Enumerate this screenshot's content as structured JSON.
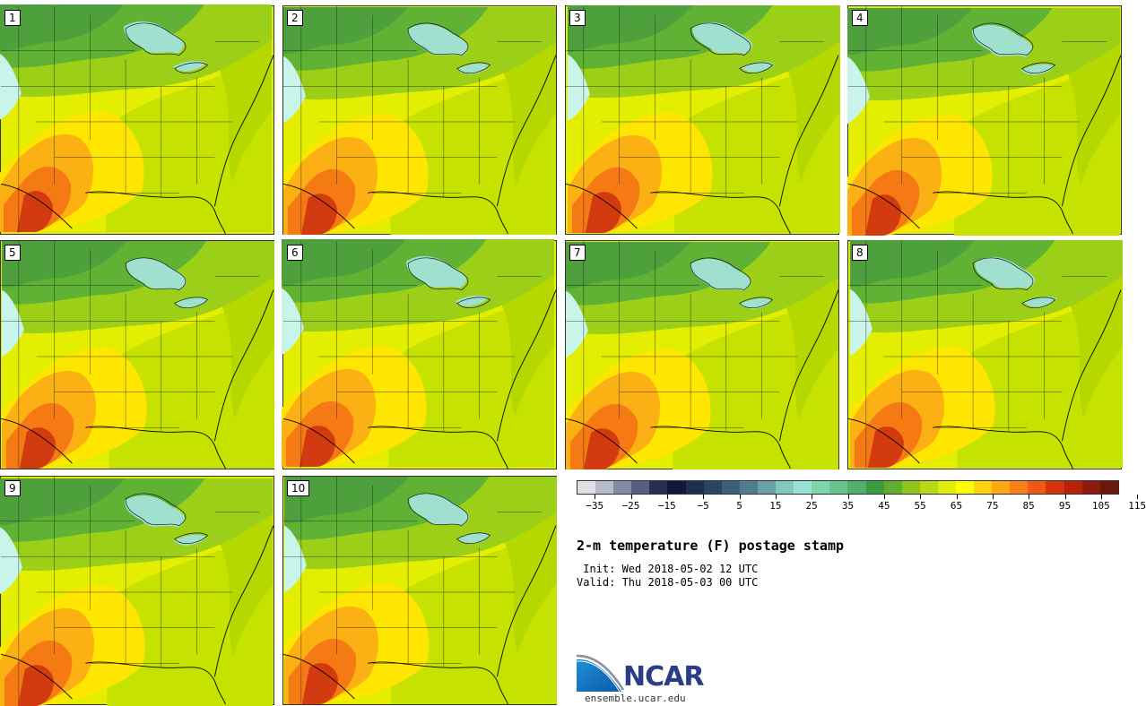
{
  "panels": [
    {
      "label": "1"
    },
    {
      "label": "2"
    },
    {
      "label": "3"
    },
    {
      "label": "4"
    },
    {
      "label": "5"
    },
    {
      "label": "6"
    },
    {
      "label": "7"
    },
    {
      "label": "8"
    },
    {
      "label": "9"
    },
    {
      "label": "10"
    }
  ],
  "colorbar": {
    "colors": [
      "#dde1e6",
      "#b8bcc8",
      "#858ba6",
      "#55607e",
      "#27304f",
      "#0f1a36",
      "#1c2e4f",
      "#2a4464",
      "#3c5e79",
      "#4f7d8f",
      "#6aa1a6",
      "#80c9be",
      "#98e3d2",
      "#7fd4a8",
      "#69c48e",
      "#52b06d",
      "#3f9a45",
      "#5ead2b",
      "#8ec51d",
      "#bbd914",
      "#e1ec08",
      "#ffff00",
      "#fed40b",
      "#fca712",
      "#f98014",
      "#ef5914",
      "#d6340f",
      "#b8200c",
      "#8f1a0e",
      "#6a170f"
    ],
    "ticks": [
      "−35",
      "−25",
      "−15",
      "−5",
      "5",
      "15",
      "25",
      "35",
      "45",
      "55",
      "65",
      "75",
      "85",
      "95",
      "105",
      "115"
    ]
  },
  "title": "2-m temperature (F) postage stamp",
  "init": " Init: Wed 2018-05-02 12 UTC",
  "valid": "Valid: Thu 2018-05-03 00 UTC",
  "logo": {
    "wordmark": "NCAR",
    "url": "ensemble.ucar.edu"
  }
}
